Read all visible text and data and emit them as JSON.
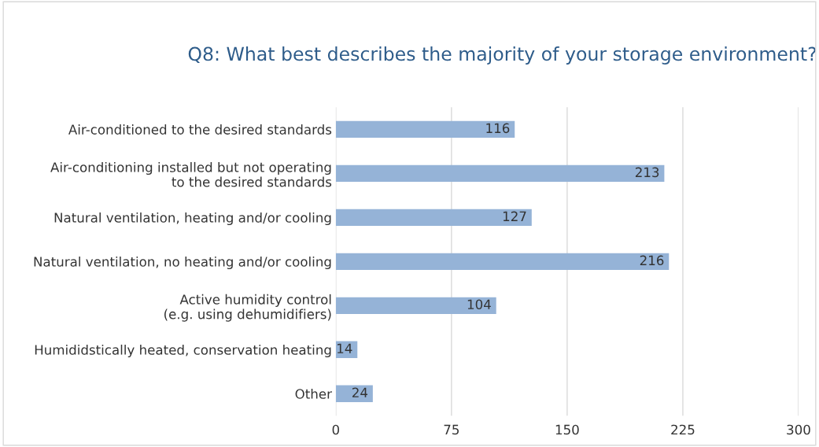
{
  "chart_data": {
    "type": "bar",
    "orientation": "horizontal",
    "title": "Q8: What best describes the majority of your storage environment?",
    "categories": [
      "Air-conditioned to the desired standards",
      "Air-conditioning installed but not operating\nto the desired standards",
      "Natural ventilation, heating and/or cooling",
      "Natural ventilation, no heating and/or cooling",
      "Active humidity control\n(e.g. using dehumidifiers)",
      "Humididstically heated, conservation heating",
      "Other"
    ],
    "values": [
      116,
      213,
      127,
      216,
      104,
      14,
      24
    ],
    "color": "#95b3d7",
    "xlim": [
      0,
      300
    ],
    "xticks": [
      0,
      75,
      150,
      225,
      300
    ],
    "grid": "x",
    "data_labels": true
  }
}
